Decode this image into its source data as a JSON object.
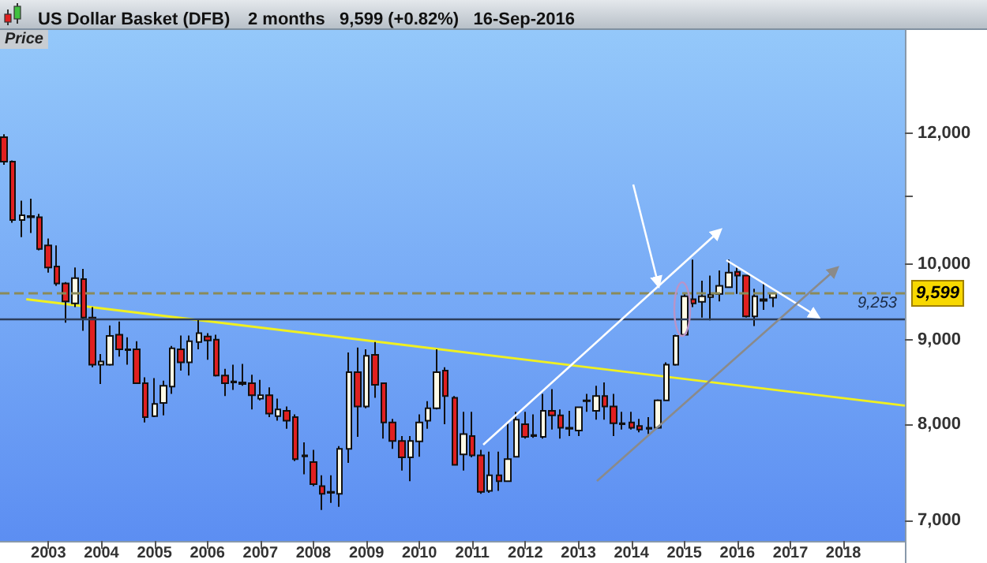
{
  "chart_data": {
    "type": "candlestick",
    "title": "US Dollar Basket (DFB)",
    "subtitle": "2 months   9,599 (+0.82%)   16-Sep-2016",
    "ylabel": "Price",
    "x": [
      "2002-03",
      "2002-05",
      "2002-07",
      "2002-09",
      "2002-11",
      "2003-01",
      "2003-03",
      "2003-05",
      "2003-07",
      "2003-09",
      "2003-11",
      "2004-01",
      "2004-03",
      "2004-05",
      "2004-07",
      "2004-09",
      "2004-11",
      "2005-01",
      "2005-03",
      "2005-05",
      "2005-07",
      "2005-09",
      "2005-11",
      "2006-01",
      "2006-03",
      "2006-05",
      "2006-07",
      "2006-09",
      "2006-11",
      "2007-01",
      "2007-03",
      "2007-05",
      "2007-07",
      "2007-09",
      "2007-11",
      "2008-01",
      "2008-03",
      "2008-05",
      "2008-07",
      "2008-09",
      "2008-11",
      "2009-01",
      "2009-03",
      "2009-05",
      "2009-07",
      "2009-09",
      "2009-11",
      "2010-01",
      "2010-03",
      "2010-05",
      "2010-07",
      "2010-09",
      "2010-11",
      "2011-01",
      "2011-03",
      "2011-05",
      "2011-07",
      "2011-09",
      "2011-11",
      "2012-01",
      "2012-03",
      "2012-05",
      "2012-07",
      "2012-09",
      "2012-11",
      "2013-01",
      "2013-03",
      "2013-05",
      "2013-07",
      "2013-09",
      "2013-11",
      "2014-01",
      "2014-03",
      "2014-05",
      "2014-07",
      "2014-09",
      "2014-11",
      "2015-01",
      "2015-03",
      "2015-05",
      "2015-07",
      "2015-09",
      "2015-11",
      "2016-01",
      "2016-03",
      "2016-05",
      "2016-07",
      "2016-09"
    ],
    "ohlc": [
      [
        11930,
        11980,
        11480,
        11530
      ],
      [
        11530,
        11550,
        10590,
        10630
      ],
      [
        10630,
        10920,
        10380,
        10700
      ],
      [
        10690,
        10950,
        10440,
        10670
      ],
      [
        10670,
        10720,
        10190,
        10210
      ],
      [
        10260,
        10360,
        9880,
        9950
      ],
      [
        9965,
        10260,
        9700,
        9730
      ],
      [
        9730,
        9750,
        9213,
        9490
      ],
      [
        9465,
        9950,
        9417,
        9805
      ],
      [
        9790,
        9930,
        9110,
        9280
      ],
      [
        9280,
        9417,
        8660,
        8690
      ],
      [
        8690,
        8820,
        8460,
        8730
      ],
      [
        8690,
        9180,
        8680,
        9045
      ],
      [
        9060,
        9230,
        8790,
        8880
      ],
      [
        8880,
        9030,
        8690,
        8870
      ],
      [
        8880,
        8980,
        8460,
        8470
      ],
      [
        8470,
        8540,
        8020,
        8080
      ],
      [
        8090,
        8530,
        8080,
        8230
      ],
      [
        8240,
        8500,
        8100,
        8440
      ],
      [
        8430,
        8920,
        8345,
        8890
      ],
      [
        8880,
        9050,
        8620,
        8720
      ],
      [
        8720,
        9050,
        8560,
        8980
      ],
      [
        8970,
        9250,
        8880,
        9080
      ],
      [
        9040,
        9080,
        8750,
        8990
      ],
      [
        9000,
        9060,
        8550,
        8560
      ],
      [
        8560,
        8640,
        8320,
        8470
      ],
      [
        8480,
        8690,
        8390,
        8490
      ],
      [
        8480,
        8700,
        8440,
        8460
      ],
      [
        8470,
        8570,
        8165,
        8330
      ],
      [
        8290,
        8510,
        8270,
        8330
      ],
      [
        8330,
        8420,
        8080,
        8120
      ],
      [
        8090,
        8290,
        8040,
        8165
      ],
      [
        8150,
        8200,
        7950,
        8040
      ],
      [
        8080,
        8110,
        7600,
        7620
      ],
      [
        7660,
        7800,
        7460,
        7650
      ],
      [
        7590,
        7720,
        7340,
        7360
      ],
      [
        7340,
        7450,
        7100,
        7260
      ],
      [
        7270,
        7450,
        7170,
        7280
      ],
      [
        7260,
        7760,
        7130,
        7730
      ],
      [
        7730,
        8840,
        7580,
        8600
      ],
      [
        8600,
        8900,
        7860,
        8200
      ],
      [
        8200,
        8880,
        8180,
        8800
      ],
      [
        8810,
        8970,
        8300,
        8450
      ],
      [
        8470,
        8480,
        7840,
        8020
      ],
      [
        8020,
        8060,
        7730,
        7815
      ],
      [
        7815,
        7870,
        7500,
        7640
      ],
      [
        7640,
        7870,
        7390,
        7815
      ],
      [
        7810,
        8110,
        7645,
        8020
      ],
      [
        8040,
        8260,
        7950,
        8180
      ],
      [
        8180,
        8880,
        8165,
        8600
      ],
      [
        8620,
        8660,
        8000,
        8320
      ],
      [
        8300,
        8320,
        7560,
        7560
      ],
      [
        7670,
        8140,
        7500,
        7890
      ],
      [
        7870,
        8140,
        7640,
        7660
      ],
      [
        7660,
        7720,
        7260,
        7280
      ],
      [
        7290,
        7700,
        7270,
        7450
      ],
      [
        7450,
        7700,
        7290,
        7390
      ],
      [
        7390,
        8020,
        7390,
        7620
      ],
      [
        7645,
        8140,
        7645,
        8050
      ],
      [
        8000,
        8140,
        7840,
        7860
      ],
      [
        7880,
        8110,
        7850,
        7870
      ],
      [
        7860,
        8345,
        7840,
        8150
      ],
      [
        8150,
        8400,
        7940,
        8100
      ],
      [
        8100,
        8165,
        7840,
        7960
      ],
      [
        7960,
        8150,
        7870,
        7950
      ],
      [
        7930,
        8200,
        7870,
        8190
      ],
      [
        8260,
        8345,
        8140,
        8270
      ],
      [
        8150,
        8440,
        8050,
        8320
      ],
      [
        8320,
        8480,
        8050,
        8200
      ],
      [
        8200,
        8345,
        7870,
        8010
      ],
      [
        8010,
        8140,
        7940,
        8000
      ],
      [
        8020,
        8140,
        7940,
        7960
      ],
      [
        7980,
        8060,
        7910,
        7940
      ],
      [
        7960,
        8080,
        7890,
        7950
      ],
      [
        7960,
        8280,
        7950,
        8270
      ],
      [
        8270,
        8720,
        8260,
        8690
      ],
      [
        8690,
        9060,
        8680,
        9045
      ],
      [
        9060,
        9590,
        9060,
        9560
      ],
      [
        9520,
        10060,
        9417,
        9465
      ],
      [
        9487,
        9770,
        9280,
        9560
      ],
      [
        9550,
        9840,
        9245,
        9580
      ],
      [
        9590,
        9910,
        9490,
        9700
      ],
      [
        9680,
        10060,
        9670,
        9880
      ],
      [
        9890,
        9950,
        9590,
        9840
      ],
      [
        9840,
        9840,
        9280,
        9295
      ],
      [
        9295,
        9660,
        9170,
        9560
      ],
      [
        9500,
        9730,
        9380,
        9520
      ],
      [
        9540,
        9610,
        9417,
        9599
      ]
    ],
    "series": [
      {
        "type": "line",
        "color": "#f0f020",
        "x": [
          "2002-08",
          "2019-03"
        ],
        "values": [
          9520,
          8210
        ]
      }
    ],
    "ref_lines": [
      {
        "axis": "y",
        "value": 9599,
        "label": "9,599",
        "color": "#8a8a5a",
        "line_style": "dashed"
      },
      {
        "axis": "y",
        "value": 9253,
        "label": "9,253",
        "color": "#2c3e5c",
        "line_style": "solid"
      }
    ],
    "log": "y",
    "xlim": [
      "2002-02",
      "2019-03"
    ],
    "xticks": [
      {
        "value": "2003",
        "label": "2003"
      },
      {
        "value": "2004",
        "label": "2004"
      },
      {
        "value": "2005",
        "label": "2005"
      },
      {
        "value": "2006",
        "label": "2006"
      },
      {
        "value": "2007",
        "label": "2007"
      },
      {
        "value": "2008",
        "label": "2008"
      },
      {
        "value": "2009",
        "label": "2009"
      },
      {
        "value": "2010",
        "label": "2010"
      },
      {
        "value": "2011",
        "label": "2011"
      },
      {
        "value": "2012",
        "label": "2012"
      },
      {
        "value": "2013",
        "label": "2013"
      },
      {
        "value": "2014",
        "label": "2014"
      },
      {
        "value": "2015",
        "label": "2015"
      },
      {
        "value": "2016",
        "label": "2016"
      },
      {
        "value": "2017",
        "label": "2017"
      },
      {
        "value": "2018",
        "label": "2018"
      }
    ],
    "ylim": [
      6800,
      13850
    ],
    "yticks": [
      {
        "value": 7000,
        "label": "7,000"
      },
      {
        "value": 8000,
        "label": "8,000"
      },
      {
        "value": 9000,
        "label": "9,000"
      },
      {
        "value": 10000,
        "label": "10,000"
      },
      {
        "value": 11000,
        "label": null
      },
      {
        "value": 12000,
        "label": "12,000"
      }
    ],
    "grid": false
  }
}
